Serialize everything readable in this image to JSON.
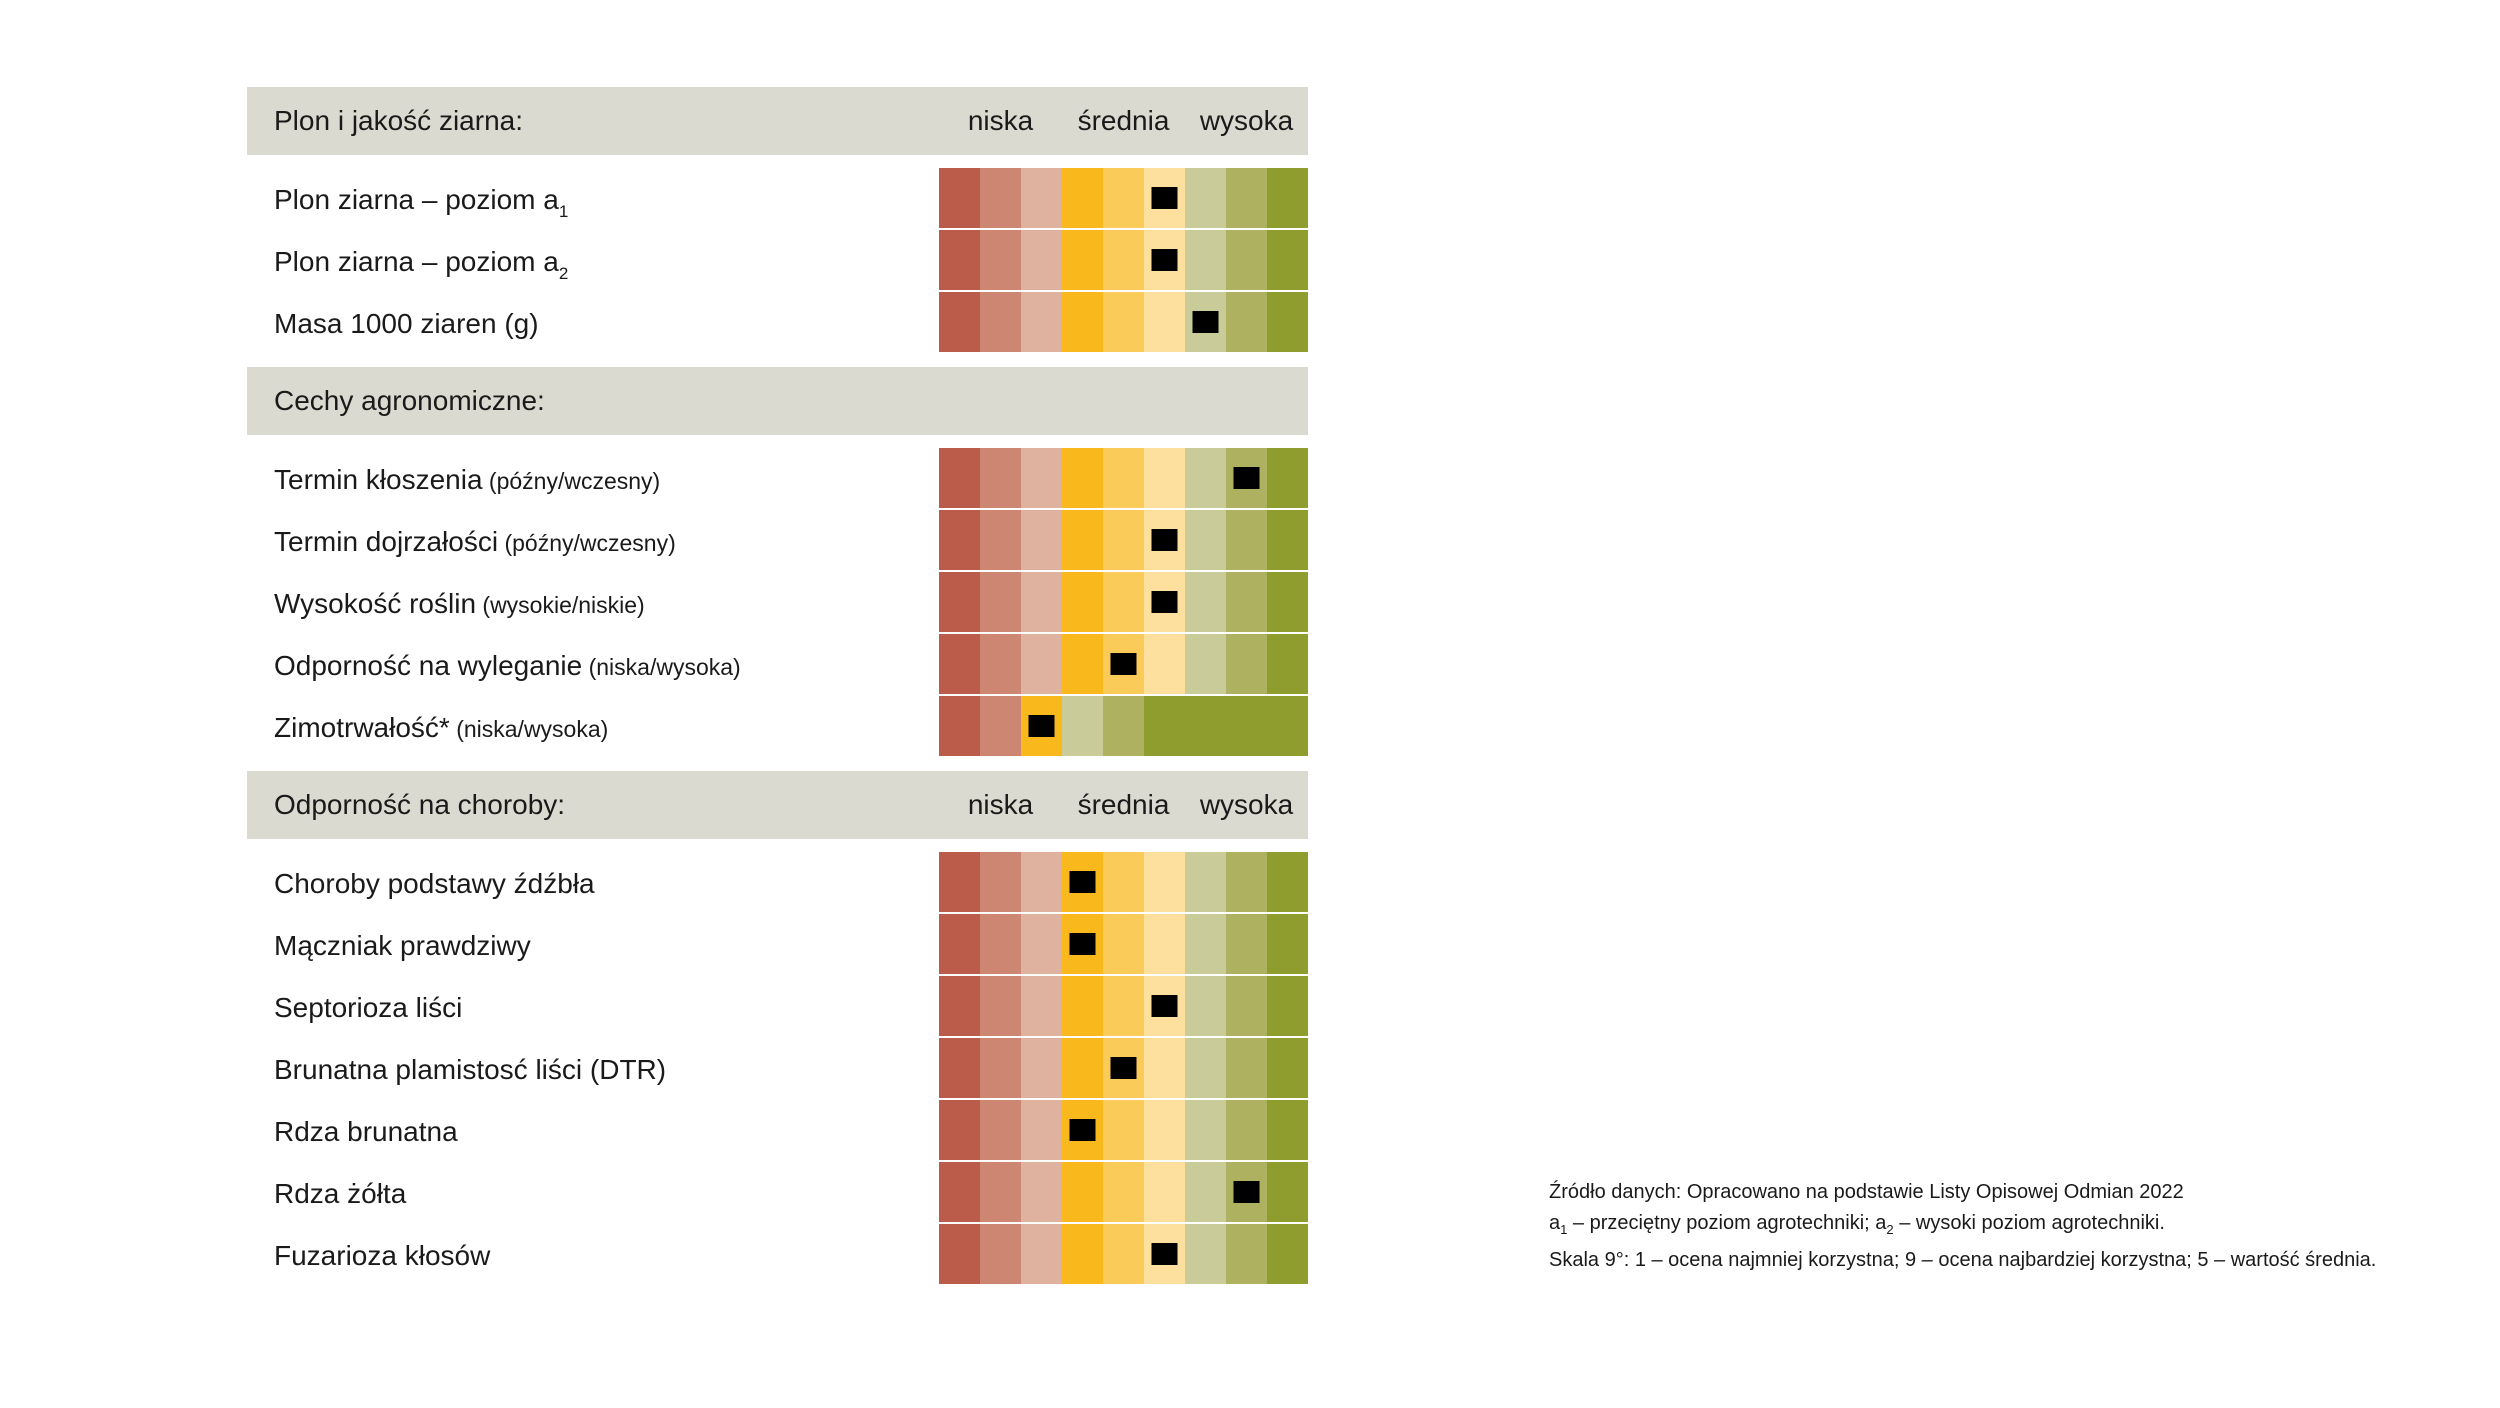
{
  "chart_data": {
    "type": "table",
    "scale": {
      "min": 1,
      "max": 9,
      "low_label": "niska",
      "mid_label": "średnia",
      "high_label": "wysoka"
    },
    "sections": [
      {
        "header": "Plon i jakość ziarna:",
        "show_scale_labels": true,
        "rows": [
          {
            "label": "Plon ziarna – poziom a",
            "sub": "1",
            "note": "",
            "value": 6,
            "palette": "standard"
          },
          {
            "label": "Plon ziarna – poziom a",
            "sub": "2",
            "note": "",
            "value": 6,
            "palette": "standard"
          },
          {
            "label": "Masa 1000 ziaren (g)",
            "sub": "",
            "note": "",
            "value": 7,
            "palette": "standard"
          }
        ]
      },
      {
        "header": "Cechy agronomiczne:",
        "show_scale_labels": false,
        "rows": [
          {
            "label": "Termin kłoszenia",
            "sub": "",
            "note": "(późny/wczesny)",
            "value": 8,
            "palette": "standard"
          },
          {
            "label": "Termin dojrzałości",
            "sub": "",
            "note": "(późny/wczesny)",
            "value": 6,
            "palette": "standard"
          },
          {
            "label": "Wysokość roślin",
            "sub": "",
            "note": "(wysokie/niskie)",
            "value": 6,
            "palette": "standard"
          },
          {
            "label": "Odporność na wyleganie",
            "sub": "",
            "note": "(niska/wysoka)",
            "value": 5,
            "palette": "standard"
          },
          {
            "label": "Zimotrwałość*",
            "sub": "",
            "note": "(niska/wysoka)",
            "value": 3,
            "palette": "winter"
          }
        ]
      },
      {
        "header": "Odporność na choroby:",
        "show_scale_labels": true,
        "rows": [
          {
            "label": "Choroby podstawy źdźbła",
            "sub": "",
            "note": "",
            "value": 4,
            "palette": "standard"
          },
          {
            "label": "Mączniak prawdziwy",
            "sub": "",
            "note": "",
            "value": 4,
            "palette": "standard"
          },
          {
            "label": "Septorioza liści",
            "sub": "",
            "note": "",
            "value": 6,
            "palette": "standard"
          },
          {
            "label": "Brunatna plamistosć liści (DTR)",
            "sub": "",
            "note": "",
            "value": 5,
            "palette": "standard"
          },
          {
            "label": "Rdza brunatna",
            "sub": "",
            "note": "",
            "value": 4,
            "palette": "standard"
          },
          {
            "label": "Rdza żółta",
            "sub": "",
            "note": "",
            "value": 8,
            "palette": "standard"
          },
          {
            "label": "Fuzarioza kłosów",
            "sub": "",
            "note": "",
            "value": 6,
            "palette": "standard"
          }
        ]
      }
    ],
    "palettes": {
      "standard": [
        "#bb5c4a",
        "#cd8672",
        "#dfb19f",
        "#f9b81b",
        "#fbcb5a",
        "#fde09d",
        "#c9cb99",
        "#aeb160",
        "#8f9c2e"
      ],
      "winter": [
        "#bb5c4a",
        "#cd8672",
        "#f9b81b",
        "#c9cb99",
        "#aeb160",
        "#8f9c2e",
        "#8f9c2e",
        "#8f9c2e",
        "#8f9c2e"
      ]
    },
    "colors": {
      "header_bg": "#dbdad0",
      "marker": "#000000",
      "cell_separator": "#ffffff"
    }
  },
  "footnote": {
    "line1": "Źródło danych: Opracowano na podstawie Listy Opisowej Odmian 2022",
    "line2_a": "a",
    "line2_sub1": "1",
    "line2_b": " – przeciętny poziom agrotechniki; a",
    "line2_sub2": "2",
    "line2_c": " – wysoki poziom agrotechniki.",
    "line3": "Skala 9°: 1 – ocena najmniej korzystna; 9 – ocena najbardziej korzystna; 5 – wartość średnia."
  }
}
